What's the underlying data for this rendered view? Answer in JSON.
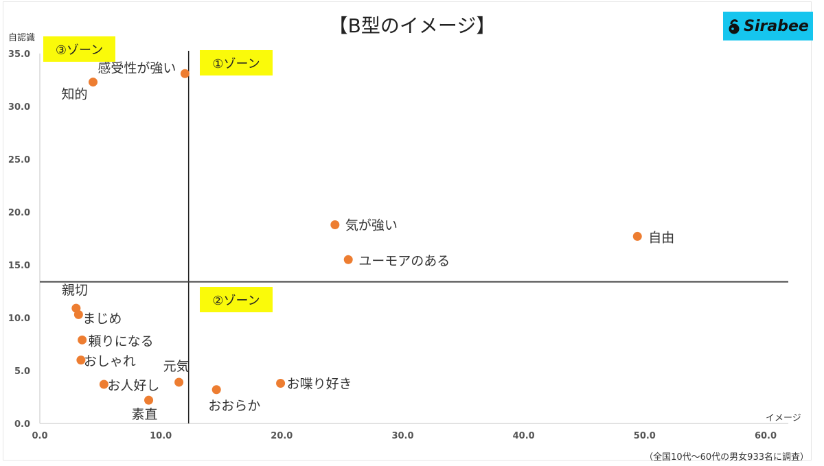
{
  "header": {
    "title": "【B型のイメージ】",
    "brand": "Sirabee",
    "brand_color": "#16c5ee"
  },
  "zones": [
    {
      "label": "③ゾーン",
      "id": "zone-3"
    },
    {
      "label": "①ゾーン",
      "id": "zone-1"
    },
    {
      "label": "②ゾーン",
      "id": "zone-2"
    }
  ],
  "footnote": "（全国10代～60代の男女933名に調査）",
  "colors": {
    "point": "#ed7d31",
    "zone_fill": "#fafa0a",
    "divider": "#444444",
    "axis": "#d9d9d9"
  },
  "chart_data": {
    "type": "scatter",
    "title": "【B型のイメージ】",
    "xlabel": "イメージ",
    "ylabel": "自認識",
    "xlim": [
      0,
      60
    ],
    "ylim": [
      0,
      35
    ],
    "x_ticks": [
      "0.0",
      "10.0",
      "20.0",
      "30.0",
      "40.0",
      "50.0",
      "60.0"
    ],
    "y_ticks": [
      "0.0",
      "5.0",
      "10.0",
      "15.0",
      "20.0",
      "25.0",
      "30.0",
      "35.0"
    ],
    "grid": false,
    "legend": "none",
    "dividers": {
      "x": 12.3,
      "y": 13.4
    },
    "points": [
      {
        "label": "感受性が強い",
        "x": 12.0,
        "y": 33.1
      },
      {
        "label": "知的",
        "x": 4.4,
        "y": 32.3
      },
      {
        "label": "気が強い",
        "x": 24.4,
        "y": 18.8
      },
      {
        "label": "ユーモアのある",
        "x": 25.5,
        "y": 15.5
      },
      {
        "label": "自由",
        "x": 49.4,
        "y": 17.7
      },
      {
        "label": "親切",
        "x": 3.0,
        "y": 10.9
      },
      {
        "label": "まじめ",
        "x": 3.2,
        "y": 10.3
      },
      {
        "label": "頼りになる",
        "x": 3.5,
        "y": 7.9
      },
      {
        "label": "おしゃれ",
        "x": 3.4,
        "y": 6.0
      },
      {
        "label": "お人好し",
        "x": 5.3,
        "y": 3.7
      },
      {
        "label": "素直",
        "x": 9.0,
        "y": 2.2
      },
      {
        "label": "元気",
        "x": 11.5,
        "y": 3.9
      },
      {
        "label": "おおらか",
        "x": 14.6,
        "y": 3.2
      },
      {
        "label": "お喋り好き",
        "x": 19.9,
        "y": 3.8
      }
    ],
    "annotations": [
      "③ゾーン",
      "①ゾーン",
      "②ゾーン",
      "（全国10代～60代の男女933名に調査）"
    ]
  }
}
